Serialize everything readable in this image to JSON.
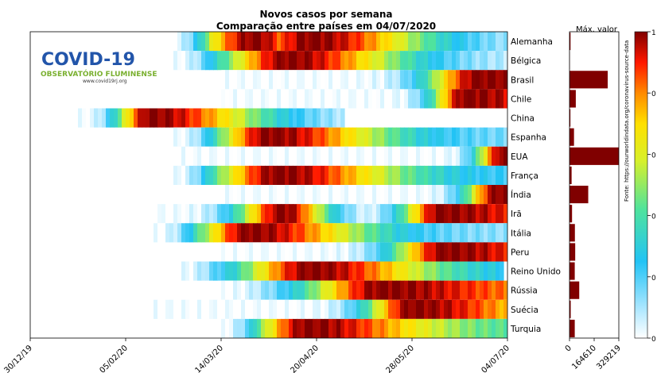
{
  "title_line1": "Novos casos por semana",
  "title_line2": "Comparação entre países em 04/07/2020",
  "logo": {
    "name": "COVID-19",
    "subtitle": "OBSERVATÓRIO FLUMINENSE",
    "url": "www.covid19rj.org"
  },
  "max_label": "Máx. valor",
  "source_note": "Fonte: https://ourworldindata.org/coronavirus-source-data",
  "colors": {
    "dark_red": "#800000",
    "bar": "#800000"
  },
  "chart_data": [
    {
      "type": "heatmap",
      "title": "Novos casos por semana",
      "subtitle": "Comparação entre países em 04/07/2020",
      "x_ticks": [
        "30/12/19",
        "05/02/20",
        "14/03/20",
        "20/04/20",
        "28/05/20",
        "04/07/20"
      ],
      "x_range": [
        "30/12/19",
        "04/07/20"
      ],
      "countries": [
        "Alemanha",
        "Bélgica",
        "Brasil",
        "Chile",
        "China",
        "Espanha",
        "EUA",
        "França",
        "Índia",
        "Irã",
        "Itália",
        "Peru",
        "Reino Unido",
        "Rússia",
        "Suécia",
        "Turquia"
      ],
      "rows": [
        {
          "start": 0.3,
          "end": 1.0,
          "peaks": [
            [
              0.47,
              0.09
            ],
            [
              0.59,
              0.11
            ]
          ],
          "tail": 0.05
        },
        {
          "start": 0.3,
          "end": 1.0,
          "peaks": [
            [
              0.54,
              0.1
            ]
          ],
          "tail": 0.05
        },
        {
          "start": 0.4,
          "end": 1.0,
          "peaks": [
            [
              0.94,
              0.08
            ]
          ],
          "tail": 0.85
        },
        {
          "start": 0.4,
          "end": 1.0,
          "peaks": [
            [
              0.91,
              0.05
            ]
          ],
          "tail": 0.48
        },
        {
          "start": 0.09,
          "end": 0.66,
          "peaks": [
            [
              0.25,
              0.05
            ]
          ],
          "tail": 0.02
        },
        {
          "start": 0.3,
          "end": 1.0,
          "peaks": [
            [
              0.5,
              0.08
            ]
          ],
          "tail": 0.14
        },
        {
          "start": 0.3,
          "end": 1.0,
          "peaks": [
            [
              0.99,
              0.04
            ]
          ],
          "tail": 0.97
        },
        {
          "start": 0.3,
          "end": 1.0,
          "peaks": [
            [
              0.52,
              0.1
            ]
          ],
          "tail": 0.2
        },
        {
          "start": 0.4,
          "end": 1.0,
          "peaks": [
            [
              0.98,
              0.05
            ]
          ],
          "tail": 0.95
        },
        {
          "start": 0.26,
          "end": 1.0,
          "peaks": [
            [
              0.53,
              0.07
            ],
            [
              0.86,
              0.06
            ]
          ],
          "tail": 0.62
        },
        {
          "start": 0.26,
          "end": 1.0,
          "peaks": [
            [
              0.46,
              0.08
            ]
          ],
          "tail": 0.12
        },
        {
          "start": 0.4,
          "end": 1.0,
          "peaks": [
            [
              0.87,
              0.08
            ]
          ],
          "tail": 0.55
        },
        {
          "start": 0.3,
          "end": 0.99,
          "peaks": [
            [
              0.59,
              0.11
            ]
          ],
          "tail": 0.2
        },
        {
          "start": 0.4,
          "end": 1.0,
          "peaks": [
            [
              0.74,
              0.12
            ]
          ],
          "tail": 0.72
        },
        {
          "start": 0.26,
          "end": 1.0,
          "peaks": [
            [
              0.8,
              0.07
            ]
          ],
          "tail": 0.45
        },
        {
          "start": 0.4,
          "end": 1.0,
          "peaks": [
            [
              0.58,
              0.08
            ]
          ],
          "tail": 0.38
        }
      ]
    },
    {
      "type": "bar",
      "title": "Máx. valor",
      "categories": [
        "Alemanha",
        "Bélgica",
        "Brasil",
        "Chile",
        "China",
        "Espanha",
        "EUA",
        "França",
        "Índia",
        "Irã",
        "Itália",
        "Peru",
        "Reino Unido",
        "Rússia",
        "Suécia",
        "Turquia"
      ],
      "values": [
        6800,
        1500,
        255000,
        42000,
        6000,
        30000,
        329219,
        14000,
        125000,
        17000,
        36000,
        38000,
        35000,
        65000,
        8000,
        35000
      ],
      "x_ticks": [
        "0",
        "164610",
        "329219"
      ],
      "xlim": [
        0,
        329219
      ]
    }
  ],
  "colorbar": {
    "ticks": [
      "1",
      "0",
      "0",
      "0",
      "0",
      "0"
    ]
  }
}
